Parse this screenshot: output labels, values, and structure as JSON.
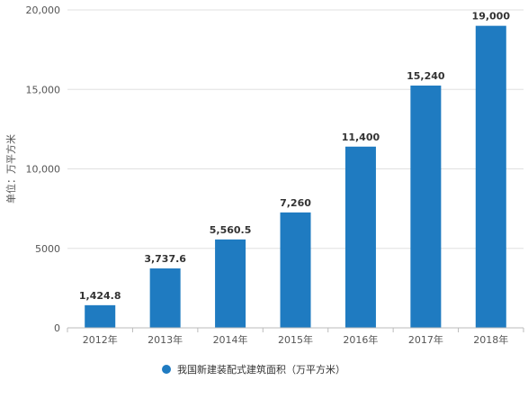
{
  "chart_data": {
    "type": "bar",
    "categories": [
      "2012年",
      "2013年",
      "2014年",
      "2015年",
      "2016年",
      "2017年",
      "2018年"
    ],
    "series": [
      {
        "name": "我国新建装配式建筑面积（万平方米）",
        "values": [
          1424.8,
          3737.6,
          5560.5,
          7260,
          11400,
          15240,
          19000
        ],
        "labels": [
          "1,424.8",
          "3,737.6",
          "5,560.5",
          "7,260",
          "11,400",
          "15,240",
          "19,000"
        ],
        "color": "#1f7bc1"
      }
    ],
    "ylabel": "单位：万平方米",
    "ylim": [
      0,
      20000
    ],
    "yticks": [
      0,
      5000,
      10000,
      15000,
      20000
    ],
    "ytick_labels": [
      "0",
      "5000",
      "10,000",
      "15,000",
      "20,000"
    ],
    "grid": true,
    "legend_position": "bottom"
  }
}
